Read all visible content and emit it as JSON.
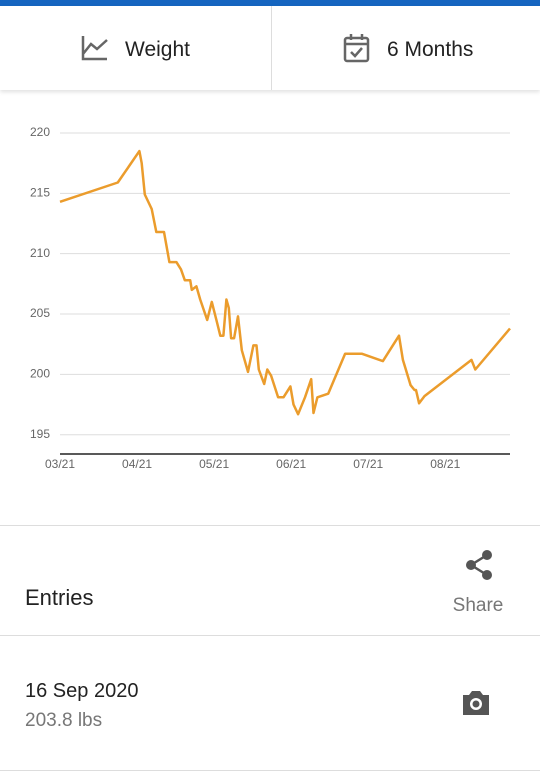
{
  "tabs": [
    "Weight",
    "6 Months"
  ],
  "chart_data": {
    "type": "line",
    "x": [
      3.0,
      3.75,
      4.03,
      4.06,
      4.1,
      4.19,
      4.25,
      4.35,
      4.42,
      4.51,
      4.57,
      4.62,
      4.69,
      4.71,
      4.77,
      4.82,
      4.91,
      4.97,
      5.03,
      5.08,
      5.12,
      5.16,
      5.19,
      5.22,
      5.26,
      5.31,
      5.36,
      5.44,
      5.51,
      5.55,
      5.58,
      5.65,
      5.69,
      5.74,
      5.83,
      5.9,
      5.99,
      6.03,
      6.09,
      6.18,
      6.26,
      6.29,
      6.34,
      6.48,
      6.7,
      6.92,
      7.19,
      7.4,
      7.45,
      7.55,
      7.6,
      7.62,
      7.66,
      7.73,
      8.34,
      8.39,
      8.84
    ],
    "values": [
      214.3,
      215.9,
      218.5,
      217.5,
      214.9,
      213.7,
      211.8,
      211.8,
      209.3,
      209.3,
      208.7,
      207.8,
      207.8,
      207.0,
      207.3,
      206.2,
      204.5,
      206.0,
      204.5,
      203.2,
      203.2,
      206.2,
      205.5,
      203.0,
      203.0,
      204.8,
      202.0,
      200.2,
      202.4,
      202.4,
      200.4,
      199.2,
      200.4,
      199.9,
      198.1,
      198.1,
      199.0,
      197.5,
      196.7,
      198.1,
      199.6,
      196.8,
      198.1,
      198.4,
      201.7,
      201.7,
      201.1,
      203.2,
      201.2,
      199.1,
      198.7,
      198.7,
      197.6,
      198.2,
      201.2,
      200.4,
      203.8
    ],
    "color": "#eb9c2c",
    "xlim": [
      3,
      8.84
    ],
    "xticks": [
      {
        "value": 3,
        "label": "03/21"
      },
      {
        "value": 4,
        "label": "04/21"
      },
      {
        "value": 5,
        "label": "05/21"
      },
      {
        "value": 6,
        "label": "06/21"
      },
      {
        "value": 7,
        "label": "07/21"
      },
      {
        "value": 8,
        "label": "08/21"
      }
    ],
    "ylim": [
      193.4,
      220
    ],
    "yticks": [
      195,
      200,
      205,
      210,
      215,
      220
    ],
    "grid": true
  },
  "entries_header": {
    "title": "Entries",
    "share": "Share"
  },
  "entries": [
    {
      "date": "16 Sep 2020",
      "weight": "203.8 lbs"
    }
  ]
}
